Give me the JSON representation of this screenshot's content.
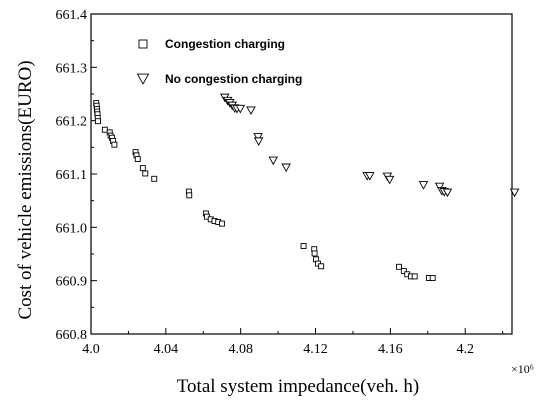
{
  "chart_data": {
    "type": "scatter",
    "xlabel": "Total system impedance(veh. h)",
    "ylabel": "Cost of vehicle emissions(EURO)",
    "x_multiplier_label": "×10⁶",
    "xlim": [
      4.0,
      4.225
    ],
    "ylim": [
      660.8,
      661.4
    ],
    "x_ticks": [
      4.0,
      4.04,
      4.08,
      4.12,
      4.16,
      4.2
    ],
    "x_tick_labels": [
      "4.0",
      "4.04",
      "4.08",
      "4.12",
      "4.16",
      "4.2"
    ],
    "y_ticks": [
      660.8,
      660.9,
      661.0,
      661.1,
      661.2,
      661.3,
      661.4
    ],
    "y_tick_labels": [
      "660.8",
      "660.9",
      "661.0",
      "661.1",
      "661.2",
      "661.3",
      "661.4"
    ],
    "grid": false,
    "legend_position": "top-left",
    "series": [
      {
        "name": "Congestion charging",
        "marker": "square",
        "points": [
          [
            4.0028,
            661.233
          ],
          [
            4.003,
            661.228
          ],
          [
            4.0032,
            661.222
          ],
          [
            4.0033,
            661.217
          ],
          [
            4.0035,
            661.212
          ],
          [
            4.0036,
            661.205
          ],
          [
            4.0037,
            661.199
          ],
          [
            4.0074,
            661.183
          ],
          [
            4.01,
            661.178
          ],
          [
            4.0105,
            661.172
          ],
          [
            4.0112,
            661.168
          ],
          [
            4.0118,
            661.162
          ],
          [
            4.0125,
            661.155
          ],
          [
            4.0238,
            661.141
          ],
          [
            4.0243,
            661.135
          ],
          [
            4.025,
            661.128
          ],
          [
            4.0277,
            661.111
          ],
          [
            4.029,
            661.101
          ],
          [
            4.0338,
            661.091
          ],
          [
            4.0523,
            661.067
          ],
          [
            4.0525,
            661.06
          ],
          [
            4.0614,
            661.026
          ],
          [
            4.062,
            661.02
          ],
          [
            4.064,
            661.015
          ],
          [
            4.066,
            661.012
          ],
          [
            4.068,
            661.01
          ],
          [
            4.07,
            661.007
          ],
          [
            4.1136,
            660.965
          ],
          [
            4.1193,
            660.959
          ],
          [
            4.1195,
            660.951
          ],
          [
            4.1203,
            660.94
          ],
          [
            4.1213,
            660.932
          ],
          [
            4.123,
            660.927
          ],
          [
            4.1646,
            660.926
          ],
          [
            4.1672,
            660.918
          ],
          [
            4.169,
            660.912
          ],
          [
            4.171,
            660.908
          ],
          [
            4.173,
            660.908
          ],
          [
            4.1806,
            660.905
          ],
          [
            4.1826,
            660.905
          ]
        ]
      },
      {
        "name": "No congestion charging",
        "marker": "triangle-down",
        "points": [
          [
            4.0715,
            661.243
          ],
          [
            4.073,
            661.237
          ],
          [
            4.0742,
            661.233
          ],
          [
            4.0755,
            661.228
          ],
          [
            4.0768,
            661.223
          ],
          [
            4.078,
            661.222
          ],
          [
            4.0798,
            661.222
          ],
          [
            4.0855,
            661.219
          ],
          [
            4.0893,
            661.169
          ],
          [
            4.0896,
            661.161
          ],
          [
            4.0974,
            661.125
          ],
          [
            4.1043,
            661.112
          ],
          [
            4.1476,
            661.096
          ],
          [
            4.149,
            661.096
          ],
          [
            4.1584,
            661.095
          ],
          [
            4.1596,
            661.089
          ],
          [
            4.1777,
            661.079
          ],
          [
            4.1863,
            661.076
          ],
          [
            4.1875,
            661.068
          ],
          [
            4.1888,
            661.066
          ],
          [
            4.1905,
            661.065
          ],
          [
            4.2264,
            661.065
          ]
        ]
      }
    ]
  }
}
